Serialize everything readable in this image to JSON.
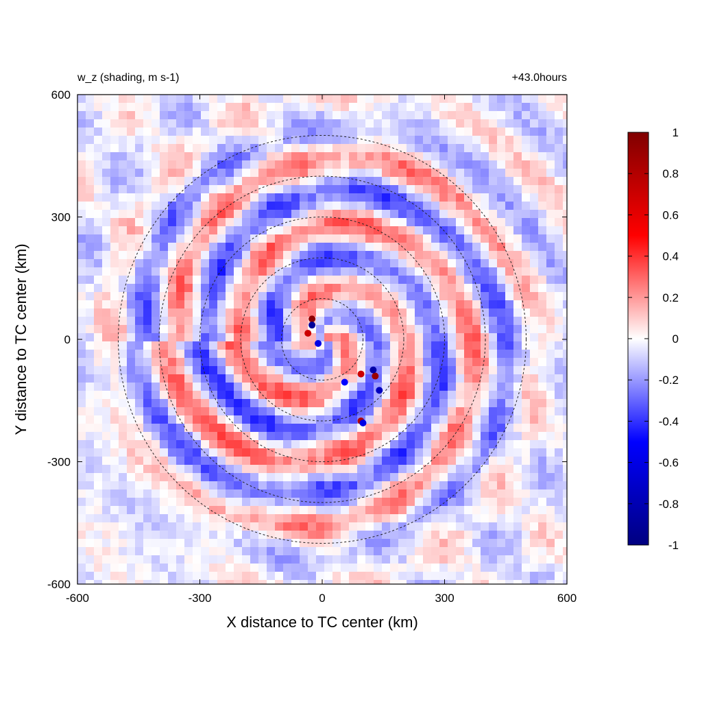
{
  "chart_data": {
    "type": "heatmap",
    "title_left": "w_z (shading, m s-1)",
    "title_right": "+43.0hours",
    "xlabel": "X distance to TC center (km)",
    "ylabel": "Y distance to TC center (km)",
    "xlim": [
      -600,
      600
    ],
    "ylim": [
      -600,
      600
    ],
    "xticks": [
      -600,
      -300,
      0,
      300,
      600
    ],
    "yticks": [
      -600,
      -300,
      0,
      300,
      600
    ],
    "rings_km": [
      100,
      200,
      300,
      400,
      500
    ],
    "colorbar": {
      "min": -1,
      "max": 1,
      "ticks": [
        "1",
        "0.8",
        "0.6",
        "0.4",
        "0.2",
        "0",
        "-0.2",
        "-0.4",
        "-0.6",
        "-0.8",
        "-1"
      ],
      "colors": [
        "#000080",
        "#0000ff",
        "#ffffff",
        "#ff0000",
        "#800000"
      ]
    },
    "features": [
      {
        "x": -25,
        "y": 50,
        "w": 0.95
      },
      {
        "x": -25,
        "y": 35,
        "w": -0.9
      },
      {
        "x": -35,
        "y": 15,
        "w": 0.7
      },
      {
        "x": -10,
        "y": -10,
        "w": -0.6
      },
      {
        "x": 130,
        "y": -90,
        "w": 0.9
      },
      {
        "x": 125,
        "y": -75,
        "w": -0.85
      },
      {
        "x": 95,
        "y": -85,
        "w": 0.7
      },
      {
        "x": 140,
        "y": -125,
        "w": -0.75
      },
      {
        "x": 95,
        "y": -200,
        "w": 0.8
      },
      {
        "x": 100,
        "y": -205,
        "w": -0.6
      },
      {
        "x": 55,
        "y": -105,
        "w": -0.5
      }
    ]
  }
}
